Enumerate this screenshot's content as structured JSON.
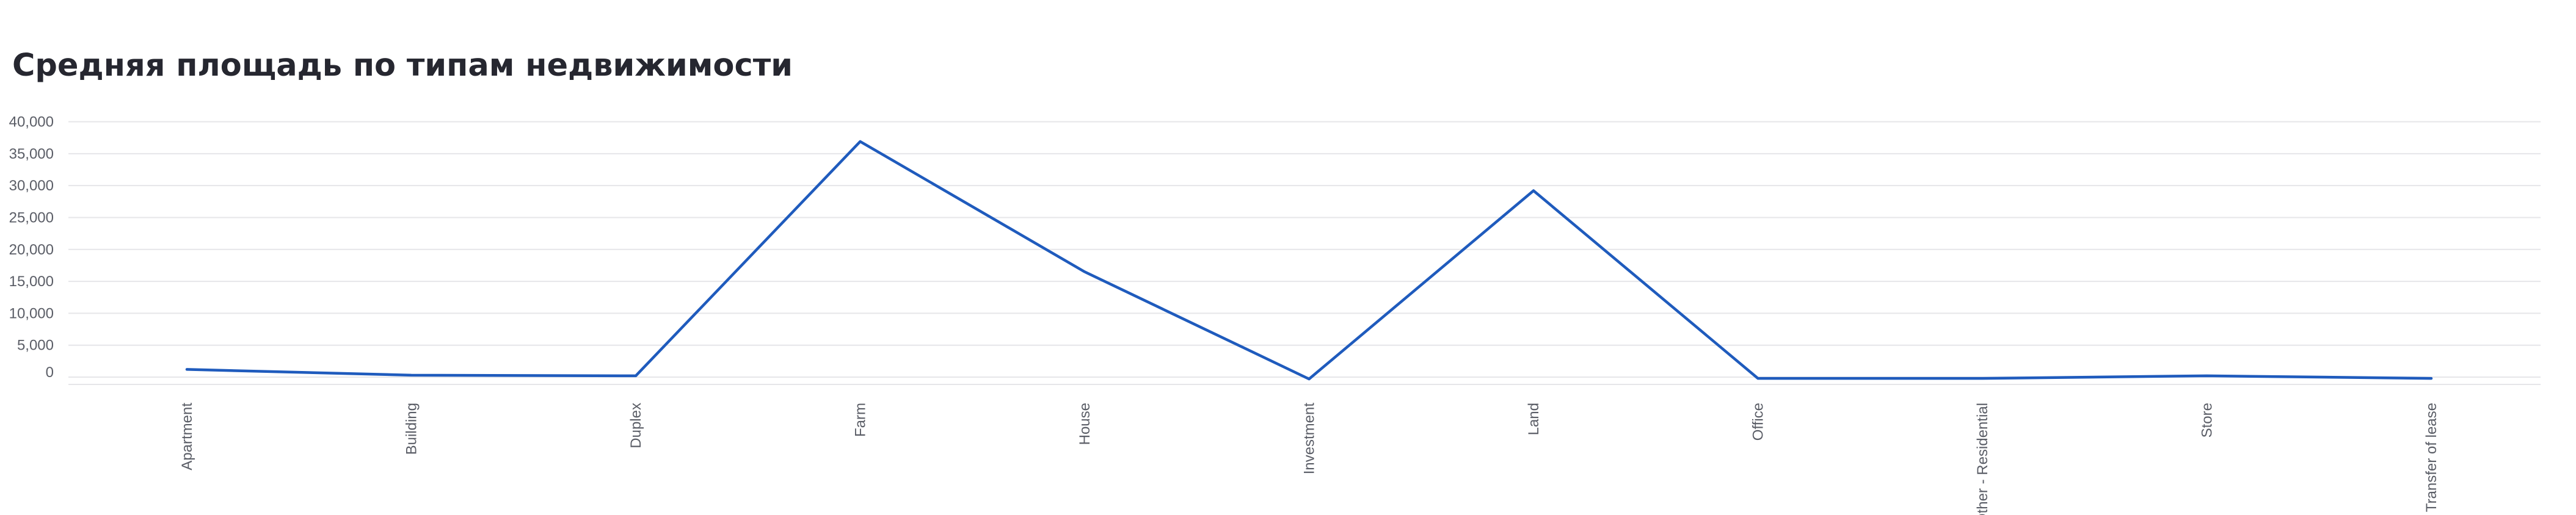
{
  "chart_data": {
    "type": "line",
    "title": "Средняя площадь по типам недвижимости",
    "xlabel": "",
    "ylabel": "",
    "categories": [
      "Apartment",
      "Building",
      "Duplex",
      "Farm",
      "House",
      "Investment",
      "Land",
      "Office",
      "Other - Residential",
      "Store",
      "Transfer of lease"
    ],
    "series": [
      {
        "values": [
          1200,
          300,
          200,
          36900,
          16500,
          -300,
          29200,
          -200,
          -200,
          200,
          -200
        ]
      }
    ],
    "y_ticks": [
      "40,000",
      "35,000",
      "30,000",
      "25,000",
      "20,000",
      "15,000",
      "10,000",
      "5,000",
      "0"
    ],
    "y_tick_values": [
      40000,
      35000,
      30000,
      25000,
      20000,
      15000,
      10000,
      5000,
      0
    ],
    "ylim": [
      -1000,
      40000
    ],
    "grid": true,
    "legend": "none",
    "colors": {
      "line": "#1f5bbd",
      "grid": "#e6e6e9",
      "tick_text": "#5a5d66",
      "title": "#262730"
    }
  }
}
